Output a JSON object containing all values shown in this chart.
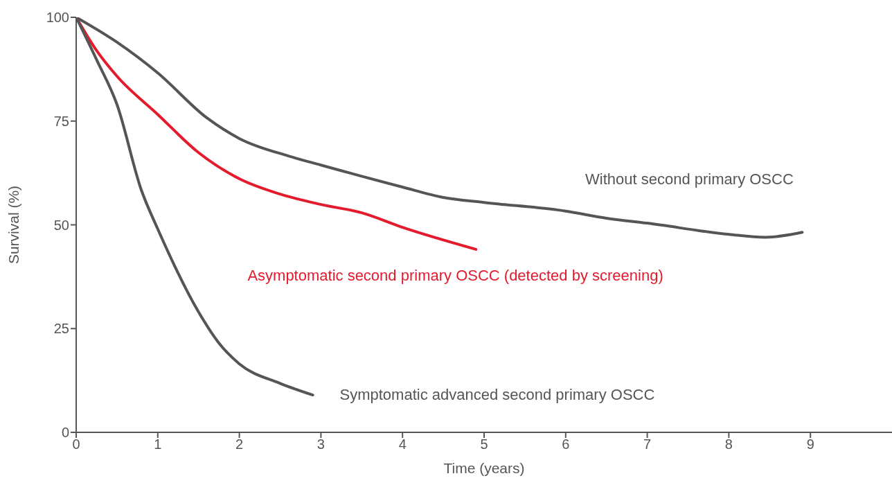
{
  "chart_data": {
    "type": "line",
    "xlabel": "Time (years)",
    "ylabel": "Survival (%)",
    "xlim": [
      0,
      10
    ],
    "xticks": [
      0,
      1,
      2,
      3,
      4,
      5,
      6,
      7,
      8,
      9
    ],
    "ylim": [
      0,
      100
    ],
    "yticks": [
      0,
      25,
      50,
      75,
      100
    ],
    "marker": "none",
    "line_style": "solid",
    "series": [
      {
        "name": "Without second primary OSCC",
        "color": "#555555",
        "x": [
          0,
          0.5,
          1,
          1.6,
          2,
          2.6,
          3,
          4,
          4.5,
          5,
          6,
          6.5,
          7,
          8,
          8.45,
          8.9
        ],
        "values": [
          100,
          94,
          86.6,
          75.8,
          70.8,
          66.6,
          64.4,
          59.1,
          56.6,
          55.4,
          53.3,
          51.6,
          50.4,
          47.7,
          47,
          48.2
        ]
      },
      {
        "name": "Asymptomatic second primary OSCC (detected by screening)",
        "color": "#e31b2d",
        "x": [
          0,
          0.25,
          0.5,
          1,
          1.5,
          2,
          2.5,
          3,
          3.5,
          4,
          4.9
        ],
        "values": [
          100,
          92,
          85.8,
          76.6,
          67.4,
          61.1,
          57.4,
          54.9,
          52.9,
          49.4,
          44.1
        ]
      },
      {
        "name": "Symptomatic advanced second primary OSCC",
        "color": "#555555",
        "x": [
          0,
          0.25,
          0.5,
          0.8,
          1,
          1.5,
          1.75,
          2,
          2.5,
          2.9
        ],
        "values": [
          100,
          89.8,
          79,
          58.3,
          49,
          29,
          21.5,
          16.5,
          11.8,
          9
        ]
      }
    ]
  }
}
